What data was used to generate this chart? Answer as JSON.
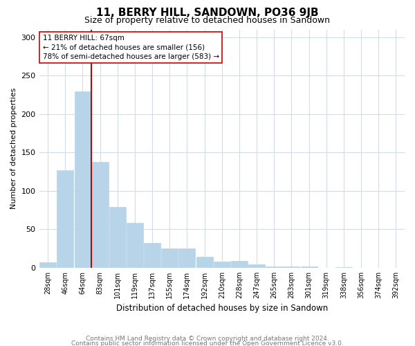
{
  "title": "11, BERRY HILL, SANDOWN, PO36 9JB",
  "subtitle": "Size of property relative to detached houses in Sandown",
  "xlabel": "Distribution of detached houses by size in Sandown",
  "ylabel": "Number of detached properties",
  "bar_labels": [
    "28sqm",
    "46sqm",
    "64sqm",
    "83sqm",
    "101sqm",
    "119sqm",
    "137sqm",
    "155sqm",
    "174sqm",
    "192sqm",
    "210sqm",
    "228sqm",
    "247sqm",
    "265sqm",
    "283sqm",
    "301sqm",
    "319sqm",
    "338sqm",
    "356sqm",
    "374sqm",
    "392sqm"
  ],
  "bar_values": [
    7,
    127,
    229,
    138,
    79,
    58,
    32,
    25,
    25,
    14,
    8,
    9,
    4,
    2,
    2,
    2,
    0,
    1,
    0,
    0,
    0
  ],
  "bar_color": "#b8d4e8",
  "marker_line_color": "#cc0000",
  "annotation_title": "11 BERRY HILL: 67sqm",
  "annotation_line1": "← 21% of detached houses are smaller (156)",
  "annotation_line2": "78% of semi-detached houses are larger (583) →",
  "ylim": [
    0,
    310
  ],
  "yticks": [
    0,
    50,
    100,
    150,
    200,
    250,
    300
  ],
  "footer_line1": "Contains HM Land Registry data © Crown copyright and database right 2024.",
  "footer_line2": "Contains public sector information licensed under the Open Government Licence v3.0.",
  "background_color": "#ffffff",
  "grid_color": "#d0dce8",
  "marker_line_xindex": 2.5
}
